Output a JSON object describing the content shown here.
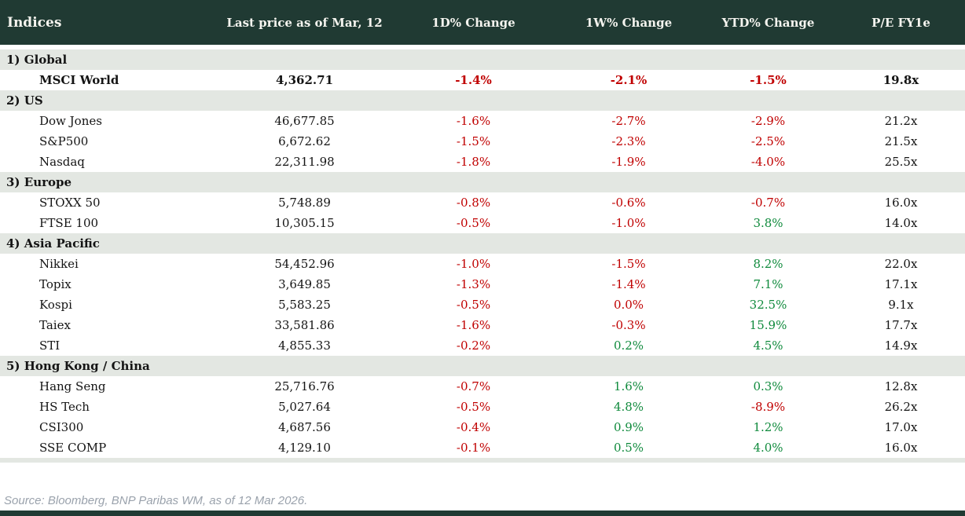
{
  "table": {
    "columns": [
      "Indices",
      "Last price as of Mar, 12",
      "1D% Change",
      "1W% Change",
      "YTD% Change",
      "P/E FY1e"
    ],
    "sections": [
      {
        "label": "1) Global",
        "rows": [
          {
            "name": "MSCI World",
            "bold": true,
            "price": "4,362.71",
            "d1": "-1.4%",
            "w1": "-2.1%",
            "ytd": "-1.5%",
            "pe": "19.8x"
          }
        ]
      },
      {
        "label": "2) US",
        "rows": [
          {
            "name": "Dow Jones",
            "price": "46,677.85",
            "d1": "-1.6%",
            "w1": "-2.7%",
            "ytd": "-2.9%",
            "pe": "21.2x"
          },
          {
            "name": "S&P500",
            "price": "6,672.62",
            "d1": "-1.5%",
            "w1": "-2.3%",
            "ytd": "-2.5%",
            "pe": "21.5x"
          },
          {
            "name": "Nasdaq",
            "price": "22,311.98",
            "d1": "-1.8%",
            "w1": "-1.9%",
            "ytd": "-4.0%",
            "pe": "25.5x"
          }
        ]
      },
      {
        "label": "3) Europe",
        "rows": [
          {
            "name": "STOXX 50",
            "price": "5,748.89",
            "d1": "-0.8%",
            "w1": "-0.6%",
            "ytd": "-0.7%",
            "pe": "16.0x"
          },
          {
            "name": "FTSE 100",
            "price": "10,305.15",
            "d1": "-0.5%",
            "w1": "-1.0%",
            "ytd": "3.8%",
            "pe": "14.0x"
          }
        ]
      },
      {
        "label": "4) Asia Pacific",
        "rows": [
          {
            "name": "Nikkei",
            "price": "54,452.96",
            "d1": "-1.0%",
            "w1": "-1.5%",
            "ytd": "8.2%",
            "pe": "22.0x"
          },
          {
            "name": "Topix",
            "price": "3,649.85",
            "d1": "-1.3%",
            "w1": "-1.4%",
            "ytd": "7.1%",
            "pe": "17.1x"
          },
          {
            "name": "Kospi",
            "price": "5,583.25",
            "d1": "-0.5%",
            "w1": "0.0%",
            "ytd": "32.5%",
            "pe": "9.1x"
          },
          {
            "name": "Taiex",
            "price": "33,581.86",
            "d1": "-1.6%",
            "w1": "-0.3%",
            "ytd": "15.9%",
            "pe": "17.7x"
          },
          {
            "name": "STI",
            "price": "4,855.33",
            "d1": "-0.2%",
            "w1": "0.2%",
            "ytd": "4.5%",
            "pe": "14.9x"
          }
        ]
      },
      {
        "label": "5) Hong Kong / China",
        "rows": [
          {
            "name": "Hang Seng",
            "price": "25,716.76",
            "d1": "-0.7%",
            "w1": "1.6%",
            "ytd": "0.3%",
            "pe": "12.8x"
          },
          {
            "name": "HS Tech",
            "price": "5,027.64",
            "d1": "-0.5%",
            "w1": "4.8%",
            "ytd": "-8.9%",
            "pe": "26.2x"
          },
          {
            "name": "CSI300",
            "price": "4,687.56",
            "d1": "-0.4%",
            "w1": "0.9%",
            "ytd": "1.2%",
            "pe": "17.0x"
          },
          {
            "name": "SSE COMP",
            "price": "4,129.10",
            "d1": "-0.1%",
            "w1": "0.5%",
            "ytd": "4.0%",
            "pe": "16.0x"
          }
        ]
      }
    ]
  },
  "footer": {
    "source": "Source: Bloomberg, BNP Paribas WM, as of 12 Mar 2026."
  },
  "colors": {
    "header_bg": "#203a33",
    "section_bg": "#e3e7e2",
    "negative": "#c00000",
    "positive": "#0f8a3c",
    "text": "#141414",
    "source_text": "#9aa2ac",
    "footer_bar": "#203a33"
  }
}
